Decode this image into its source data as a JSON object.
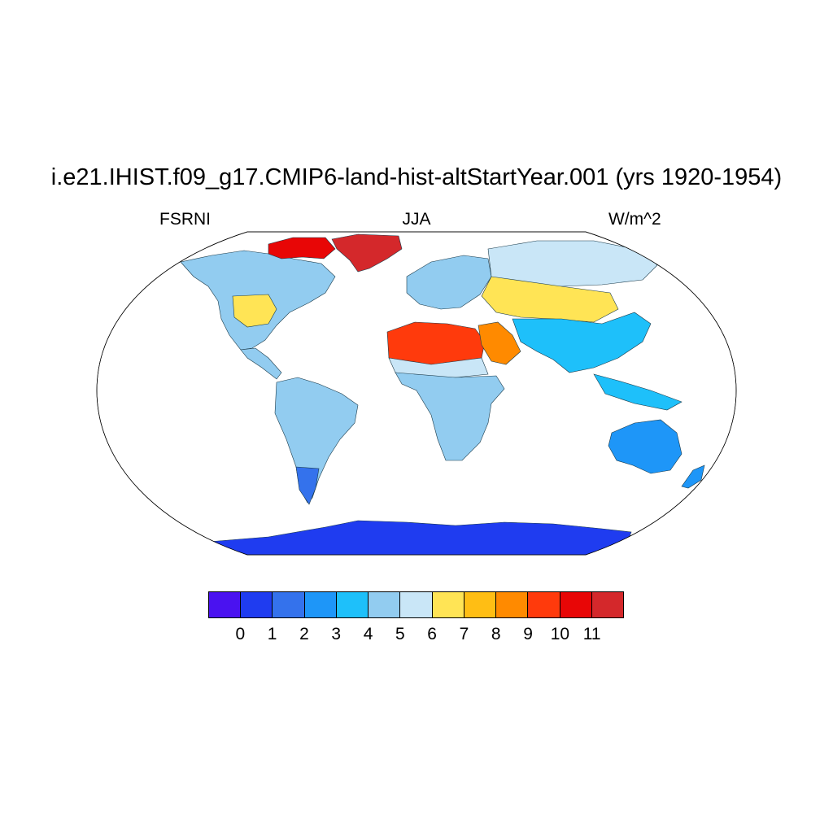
{
  "title": "i.e21.IHIST.f09_g17.CMIP6-land-hist-altStartYear.001 (yrs 1920-1954)",
  "variable": "FSRNI",
  "season": "JJA",
  "units": "W/m^2",
  "projection": "Robinson",
  "colorbar": {
    "colors": [
      "#4a12f0",
      "#1f3cf0",
      "#3472ec",
      "#1e96f8",
      "#1ec0fa",
      "#92ccf0",
      "#c9e6f7",
      "#ffe455",
      "#ffbe14",
      "#ff8a00",
      "#ff3a0c",
      "#e80606",
      "#d4282b"
    ],
    "labels": [
      "0",
      "1",
      "2",
      "3",
      "4",
      "5",
      "6",
      "7",
      "8",
      "9",
      "10",
      "11"
    ]
  },
  "regions": [
    {
      "name": "Greenland",
      "color": "#d4282b"
    },
    {
      "name": "Canadian Arctic Archipelago",
      "color": "#e80606"
    },
    {
      "name": "North America",
      "color": "#92ccf0"
    },
    {
      "name": "US Great Plains",
      "color": "#ffe455"
    },
    {
      "name": "South America",
      "color": "#92ccf0"
    },
    {
      "name": "Patagonia",
      "color": "#3472ec"
    },
    {
      "name": "Sahara",
      "color": "#ff3a0c"
    },
    {
      "name": "Sahel",
      "color": "#c9e6f7"
    },
    {
      "name": "Central Africa",
      "color": "#92ccf0"
    },
    {
      "name": "Arabian Peninsula",
      "color": "#ff8a00"
    },
    {
      "name": "Europe",
      "color": "#92ccf0"
    },
    {
      "name": "Central Asia",
      "color": "#ffe455"
    },
    {
      "name": "Siberia",
      "color": "#c9e6f7"
    },
    {
      "name": "South Asia",
      "color": "#1ec0fa"
    },
    {
      "name": "Australia",
      "color": "#1e96f8"
    },
    {
      "name": "Antarctica",
      "color": "#1f3cf0"
    }
  ]
}
